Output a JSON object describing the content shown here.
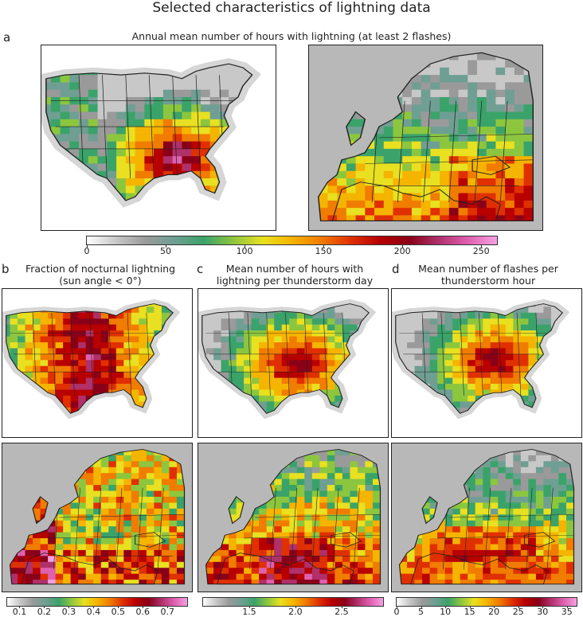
{
  "figure": {
    "title": "Selected characteristics of lightning data"
  },
  "panels": {
    "a": {
      "letter": "a",
      "title": "Annual mean number of hours with lightning (at least 2 flashes)",
      "colorbar": {
        "ticks": [
          "0",
          "50",
          "100",
          "150",
          "200",
          "250"
        ],
        "min": 0,
        "max": 260
      }
    },
    "b": {
      "letter": "b",
      "title_line1": "Fraction of nocturnal lightning",
      "title_line2": "(sun angle < 0°)",
      "colorbar": {
        "ticks": [
          "0.1",
          "0.2",
          "0.3",
          "0.4",
          "0.5",
          "0.6",
          "0.7"
        ],
        "min": 0.05,
        "max": 0.78
      }
    },
    "c": {
      "letter": "c",
      "title_line1": "Mean number of hours with",
      "title_line2": "lightning per thunderstorm day",
      "colorbar": {
        "ticks": [
          "1.5",
          "2.0",
          "2.5"
        ],
        "min": 1.0,
        "max": 2.95
      }
    },
    "d": {
      "letter": "d",
      "title_line1": "Mean number of flashes per",
      "title_line2": "thunderstorm hour",
      "colorbar": {
        "ticks": [
          "0",
          "5",
          "10",
          "15",
          "20",
          "25",
          "30",
          "35"
        ],
        "min": 0,
        "max": 37
      }
    }
  },
  "colors": {
    "colormap": [
      "#ffffff",
      "#c8c8c8",
      "#9a9a9a",
      "#6f9f92",
      "#3aa36a",
      "#8cc63f",
      "#e8e020",
      "#f5b400",
      "#f07c00",
      "#e03000",
      "#b80000",
      "#8a0018",
      "#b0306a",
      "#e060b0",
      "#f5a0e0"
    ],
    "ocean_dim": "#e4e4e4",
    "outline": "#222222"
  }
}
